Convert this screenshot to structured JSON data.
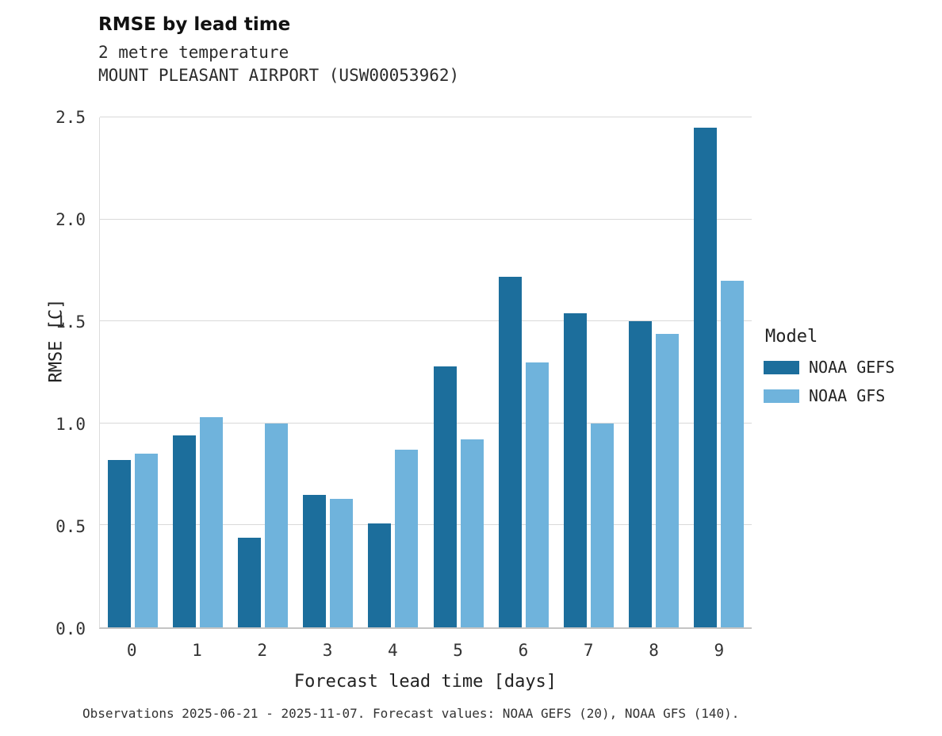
{
  "header": {
    "title": "RMSE by lead time",
    "subtitle_line1": "2 metre temperature",
    "subtitle_line2": "MOUNT PLEASANT AIRPORT (USW00053962)"
  },
  "caption": {
    "text": "Observations 2025-06-21 - 2025-11-07. Forecast values: NOAA GEFS (20), NOAA GFS (140)."
  },
  "legend": {
    "title": "Model",
    "entries": [
      {
        "label": "NOAA GEFS",
        "color": "#1c6e9c"
      },
      {
        "label": "NOAA GFS",
        "color": "#6fb3dc"
      }
    ]
  },
  "chart_data": {
    "type": "bar",
    "title": "RMSE by lead time",
    "subtitle": "2 metre temperature — MOUNT PLEASANT AIRPORT (USW00053962)",
    "categories": [
      "0",
      "1",
      "2",
      "3",
      "4",
      "5",
      "6",
      "7",
      "8",
      "9"
    ],
    "series": [
      {
        "name": "NOAA GEFS",
        "color": "#1c6e9c",
        "values": [
          0.82,
          0.94,
          0.44,
          0.65,
          0.51,
          1.28,
          1.72,
          1.54,
          1.5,
          2.45
        ]
      },
      {
        "name": "NOAA GFS",
        "color": "#6fb3dc",
        "values": [
          0.85,
          1.03,
          1.0,
          0.63,
          0.87,
          0.92,
          1.3,
          1.0,
          1.44,
          1.7
        ]
      }
    ],
    "xlabel": "Forecast lead time [days]",
    "ylabel": "RMSE [C]",
    "ylim": [
      0,
      2.5
    ],
    "yticks": [
      0.0,
      0.5,
      1.0,
      1.5,
      2.0,
      2.5
    ],
    "grid": true,
    "legend_position": "right"
  }
}
